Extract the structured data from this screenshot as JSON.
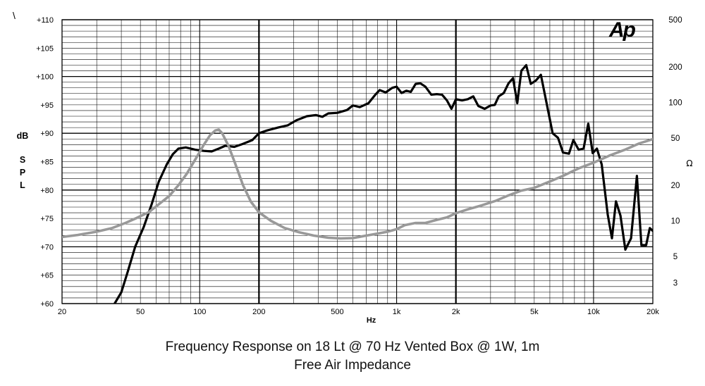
{
  "corner_mark": "\\",
  "logo": "Ap",
  "caption_line1": "Frequency Response on 18 Lt @ 70 Hz Vented Box @ 1W, 1m",
  "caption_line2": "Free Air Impedance",
  "chart_data": {
    "type": "line",
    "xlabel": "Hz",
    "ylabel": "dB SPL",
    "y2label": "Ω",
    "x_scale": "log",
    "xlim": [
      20,
      20000
    ],
    "ylim": [
      60,
      110
    ],
    "y2_scale": "log",
    "y2lim": [
      2,
      500
    ],
    "grid": true,
    "x_ticks": [
      20,
      50,
      100,
      200,
      500,
      1000,
      2000,
      5000,
      10000,
      20000
    ],
    "x_tick_labels": [
      "20",
      "50",
      "100",
      "200",
      "500",
      "1k",
      "2k",
      "5k",
      "10k",
      "20k"
    ],
    "y_ticks": [
      60,
      65,
      70,
      75,
      80,
      85,
      90,
      95,
      100,
      105,
      110
    ],
    "y_tick_labels": [
      "+60",
      "+65",
      "+70",
      "+75",
      "+80",
      "+85",
      "+90",
      "+95",
      "+100",
      "+105",
      "+110"
    ],
    "y2_ticks": [
      3,
      5,
      10,
      20,
      50,
      100,
      200,
      500
    ],
    "y2_tick_labels": [
      "3",
      "5",
      "10",
      "20",
      "50",
      "100",
      "200",
      "500"
    ],
    "series": [
      {
        "axis": "left",
        "color": "#000000",
        "points": [
          [
            37,
            60
          ],
          [
            40,
            62
          ],
          [
            43,
            65.5
          ],
          [
            47,
            70
          ],
          [
            52,
            73.5
          ],
          [
            57,
            77.5
          ],
          [
            62,
            81.5
          ],
          [
            68,
            84.5
          ],
          [
            73,
            86.3
          ],
          [
            78,
            87.3
          ],
          [
            85,
            87.5
          ],
          [
            95,
            87.1
          ],
          [
            105,
            86.9
          ],
          [
            115,
            86.8
          ],
          [
            125,
            87.3
          ],
          [
            135,
            87.8
          ],
          [
            150,
            87.6
          ],
          [
            165,
            88.1
          ],
          [
            185,
            88.8
          ],
          [
            200,
            90
          ],
          [
            220,
            90.5
          ],
          [
            250,
            91
          ],
          [
            280,
            91.4
          ],
          [
            310,
            92.3
          ],
          [
            350,
            93
          ],
          [
            390,
            93.2
          ],
          [
            420,
            92.9
          ],
          [
            450,
            93.5
          ],
          [
            500,
            93.6
          ],
          [
            560,
            94.1
          ],
          [
            600,
            94.9
          ],
          [
            650,
            94.6
          ],
          [
            720,
            95.3
          ],
          [
            780,
            96.8
          ],
          [
            820,
            97.6
          ],
          [
            880,
            97.2
          ],
          [
            950,
            98
          ],
          [
            1000,
            98.2
          ],
          [
            1060,
            97.1
          ],
          [
            1120,
            97.5
          ],
          [
            1180,
            97.3
          ],
          [
            1250,
            98.7
          ],
          [
            1320,
            98.8
          ],
          [
            1400,
            98.2
          ],
          [
            1500,
            96.8
          ],
          [
            1600,
            96.9
          ],
          [
            1700,
            96.8
          ],
          [
            1800,
            95.8
          ],
          [
            1900,
            94.3
          ],
          [
            2000,
            96
          ],
          [
            2150,
            95.8
          ],
          [
            2300,
            96
          ],
          [
            2450,
            96.5
          ],
          [
            2600,
            94.8
          ],
          [
            2800,
            94.3
          ],
          [
            3000,
            94.9
          ],
          [
            3150,
            95
          ],
          [
            3300,
            96.5
          ],
          [
            3500,
            97.1
          ],
          [
            3700,
            98.8
          ],
          [
            3900,
            99.7
          ],
          [
            4100,
            95.3
          ],
          [
            4300,
            101
          ],
          [
            4550,
            102
          ],
          [
            4800,
            98.7
          ],
          [
            5100,
            99.3
          ],
          [
            5400,
            100.3
          ],
          [
            5800,
            95
          ],
          [
            6200,
            90
          ],
          [
            6600,
            89.2
          ],
          [
            7000,
            86.6
          ],
          [
            7500,
            86.4
          ],
          [
            7900,
            88.8
          ],
          [
            8400,
            87.1
          ],
          [
            8900,
            87.3
          ],
          [
            9400,
            91.7
          ],
          [
            9900,
            86.5
          ],
          [
            10400,
            87.3
          ],
          [
            11000,
            84.5
          ],
          [
            11800,
            75.7
          ],
          [
            12400,
            71.5
          ],
          [
            13000,
            78
          ],
          [
            13700,
            75.5
          ],
          [
            14500,
            69.5
          ],
          [
            15500,
            71.5
          ],
          [
            16600,
            82.5
          ],
          [
            17500,
            70.3
          ],
          [
            18500,
            70.3
          ],
          [
            19300,
            73.3
          ],
          [
            20000,
            72.8
          ]
        ]
      },
      {
        "axis": "right",
        "color": "#999999",
        "points": [
          [
            20,
            7.3
          ],
          [
            24,
            7.6
          ],
          [
            30,
            8.1
          ],
          [
            36,
            8.7
          ],
          [
            42,
            9.6
          ],
          [
            48,
            10.6
          ],
          [
            55,
            11.8
          ],
          [
            62,
            13.8
          ],
          [
            70,
            16.2
          ],
          [
            78,
            20
          ],
          [
            86,
            25
          ],
          [
            95,
            33
          ],
          [
            105,
            44
          ],
          [
            113,
            53
          ],
          [
            120,
            58
          ],
          [
            125,
            59
          ],
          [
            130,
            55
          ],
          [
            140,
            43
          ],
          [
            152,
            30
          ],
          [
            166,
            20
          ],
          [
            182,
            14.5
          ],
          [
            200,
            11.8
          ],
          [
            230,
            10
          ],
          [
            270,
            8.7
          ],
          [
            320,
            8
          ],
          [
            380,
            7.5
          ],
          [
            450,
            7.2
          ],
          [
            520,
            7.1
          ],
          [
            600,
            7.15
          ],
          [
            700,
            7.5
          ],
          [
            800,
            7.8
          ],
          [
            900,
            8.1
          ],
          [
            1000,
            8.5
          ],
          [
            1100,
            9.2
          ],
          [
            1250,
            9.6
          ],
          [
            1400,
            9.6
          ],
          [
            1600,
            10.2
          ],
          [
            1800,
            10.7
          ],
          [
            2000,
            11.6
          ],
          [
            2300,
            12.5
          ],
          [
            2700,
            13.5
          ],
          [
            3200,
            14.8
          ],
          [
            3700,
            16.4
          ],
          [
            4300,
            18
          ],
          [
            5000,
            19
          ],
          [
            6000,
            21.5
          ],
          [
            7000,
            24
          ],
          [
            8500,
            28
          ],
          [
            10000,
            31
          ],
          [
            12000,
            35.5
          ],
          [
            14500,
            40
          ],
          [
            17000,
            45
          ],
          [
            20000,
            49
          ]
        ]
      }
    ]
  }
}
